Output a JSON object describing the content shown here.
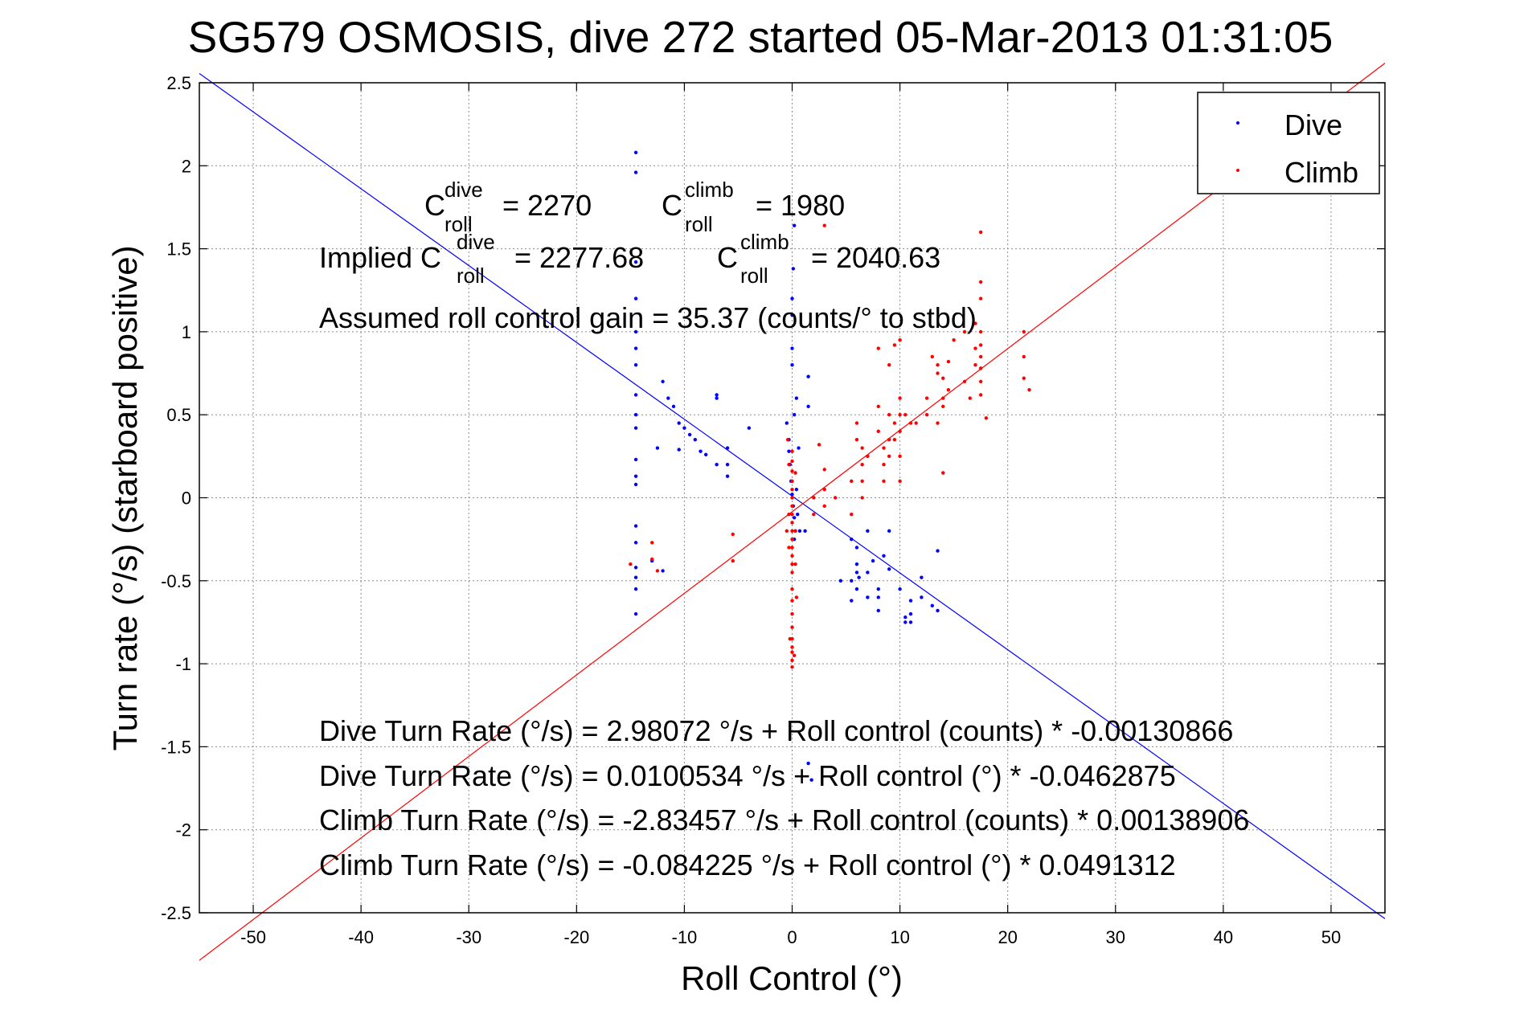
{
  "chart_data": {
    "type": "scatter",
    "title": "SG579 OSMOSIS, dive 272 started 05-Mar-2013 01:31:05",
    "xlabel": "Roll Control (°)",
    "ylabel": "Turn rate (°/s) (starboard positive)",
    "xlim": [
      -55,
      55
    ],
    "ylim": [
      -2.5,
      2.5
    ],
    "xticks": [
      -50,
      -40,
      -30,
      -20,
      -10,
      0,
      10,
      20,
      30,
      40,
      50
    ],
    "yticks": [
      -2.5,
      -2,
      -1.5,
      -1,
      -0.5,
      0,
      0.5,
      1,
      1.5,
      2,
      2.5
    ],
    "ytick_labels": [
      "-2.5",
      "-2",
      "-1.5",
      "-1",
      "-0.5",
      "0",
      "0.5",
      "1",
      "1.5",
      "2",
      "2.5"
    ],
    "grid": true,
    "legend_position": "top-right",
    "series": [
      {
        "name": "Dive",
        "color": "#0000ff",
        "marker": "dot",
        "points": [
          [
            -14.5,
            2.08
          ],
          [
            -14.5,
            1.96
          ],
          [
            -14.5,
            1.42
          ],
          [
            -14.5,
            1.2
          ],
          [
            -14.5,
            1.0
          ],
          [
            -14.5,
            0.9
          ],
          [
            -14.5,
            0.8
          ],
          [
            -14.5,
            0.62
          ],
          [
            -14.5,
            0.5
          ],
          [
            -14.5,
            0.42
          ],
          [
            -14.5,
            0.23
          ],
          [
            -14.5,
            0.13
          ],
          [
            -14.5,
            0.08
          ],
          [
            -14.5,
            -0.17
          ],
          [
            -14.5,
            -0.27
          ],
          [
            -14.5,
            -0.42
          ],
          [
            -14.5,
            -0.48
          ],
          [
            -14.5,
            -0.55
          ],
          [
            -14.5,
            -0.7
          ],
          [
            -12,
            0.7
          ],
          [
            -11.5,
            0.6
          ],
          [
            -11,
            0.55
          ],
          [
            -12.5,
            0.3
          ],
          [
            -10.5,
            0.45
          ],
          [
            -10,
            0.42
          ],
          [
            -9.5,
            0.38
          ],
          [
            -9,
            0.35
          ],
          [
            -8.5,
            0.28
          ],
          [
            -8,
            0.26
          ],
          [
            -7,
            0.2
          ],
          [
            -7,
            0.6
          ],
          [
            -7,
            0.62
          ],
          [
            -6,
            0.3
          ],
          [
            -6,
            0.2
          ],
          [
            -6,
            0.13
          ],
          [
            -4,
            0.42
          ],
          [
            -12,
            -0.44
          ],
          [
            -13,
            -0.38
          ],
          [
            -10.5,
            0.29
          ],
          [
            -0.5,
            0.45
          ],
          [
            -0.3,
            0.35
          ],
          [
            -0.2,
            0.2
          ],
          [
            -0.1,
            0.1
          ],
          [
            0,
            0.02
          ],
          [
            0.1,
            -0.05
          ],
          [
            0.2,
            -0.12
          ],
          [
            0.3,
            -0.2
          ],
          [
            0.5,
            -0.1
          ],
          [
            0.4,
            0.05
          ],
          [
            0.6,
            0.3
          ],
          [
            0.7,
            -0.2
          ],
          [
            0.2,
            0.5
          ],
          [
            0.4,
            0.6
          ],
          [
            0.2,
            1.64
          ],
          [
            0.1,
            1.38
          ],
          [
            0,
            1.1
          ],
          [
            0,
            0.9
          ],
          [
            0,
            0.8
          ],
          [
            0,
            1.2
          ],
          [
            1.5,
            0.73
          ],
          [
            1.5,
            0.55
          ],
          [
            -0.3,
            0.28
          ],
          [
            0.2,
            -0.25
          ],
          [
            1.2,
            -0.2
          ],
          [
            1.5,
            -1.6
          ],
          [
            1.8,
            -1.7
          ],
          [
            6,
            -0.3
          ],
          [
            6,
            -0.4
          ],
          [
            6,
            -0.45
          ],
          [
            5.5,
            -0.5
          ],
          [
            5.5,
            -0.62
          ],
          [
            6,
            -0.55
          ],
          [
            6.2,
            -0.48
          ],
          [
            7,
            -0.45
          ],
          [
            7,
            -0.6
          ],
          [
            7.5,
            -0.38
          ],
          [
            4.5,
            -0.5
          ],
          [
            8,
            -0.55
          ],
          [
            8,
            -0.6
          ],
          [
            8,
            -0.68
          ],
          [
            9,
            -0.43
          ],
          [
            10,
            -0.55
          ],
          [
            10.5,
            -0.72
          ],
          [
            10.5,
            -0.75
          ],
          [
            11,
            -0.62
          ],
          [
            11,
            -0.7
          ],
          [
            11,
            -0.75
          ],
          [
            12,
            -0.48
          ],
          [
            12,
            -0.6
          ],
          [
            13,
            -0.65
          ],
          [
            13.5,
            -0.68
          ],
          [
            13.5,
            -0.32
          ],
          [
            5.5,
            -0.25
          ],
          [
            7,
            -0.2
          ],
          [
            8.5,
            -0.35
          ],
          [
            9,
            -0.2
          ]
        ]
      },
      {
        "name": "Climb",
        "color": "#ff0000",
        "marker": "dot",
        "points": [
          [
            0,
            0.28
          ],
          [
            0,
            0.22
          ],
          [
            0,
            0.16
          ],
          [
            0,
            0.1
          ],
          [
            0,
            0.05
          ],
          [
            0,
            0.0
          ],
          [
            0,
            -0.05
          ],
          [
            0,
            -0.1
          ],
          [
            0,
            -0.15
          ],
          [
            0,
            -0.2
          ],
          [
            0,
            -0.25
          ],
          [
            0,
            -0.3
          ],
          [
            0,
            -0.35
          ],
          [
            0,
            -0.4
          ],
          [
            0,
            -0.45
          ],
          [
            0,
            -0.55
          ],
          [
            0,
            -0.62
          ],
          [
            0,
            -0.7
          ],
          [
            0,
            -0.78
          ],
          [
            0,
            -0.85
          ],
          [
            0,
            -0.9
          ],
          [
            0,
            -0.93
          ],
          [
            0,
            -0.98
          ],
          [
            0,
            -1.02
          ],
          [
            -0.3,
            0.2
          ],
          [
            -0.3,
            -0.1
          ],
          [
            -0.3,
            -0.3
          ],
          [
            -0.5,
            -0.2
          ],
          [
            0.3,
            0.15
          ],
          [
            0.3,
            -0.2
          ],
          [
            0.3,
            -0.4
          ],
          [
            -0.4,
            0.35
          ],
          [
            0.4,
            -0.6
          ],
          [
            -0.2,
            -0.85
          ],
          [
            0.2,
            -0.95
          ],
          [
            -15,
            -0.4
          ],
          [
            -13,
            -0.27
          ],
          [
            -13,
            -0.37
          ],
          [
            -12.5,
            -0.44
          ],
          [
            -5.5,
            -0.38
          ],
          [
            -5.5,
            -0.22
          ],
          [
            2.5,
            0.32
          ],
          [
            3,
            0.17
          ],
          [
            3,
            0.05
          ],
          [
            3,
            -0.05
          ],
          [
            2,
            0.0
          ],
          [
            2,
            -0.1
          ],
          [
            4,
            0.0
          ],
          [
            6,
            0.45
          ],
          [
            6,
            0.35
          ],
          [
            6.5,
            0.3
          ],
          [
            6.5,
            0.2
          ],
          [
            6.5,
            0.1
          ],
          [
            6.5,
            0.0
          ],
          [
            7,
            0.25
          ],
          [
            5.5,
            0.1
          ],
          [
            5.5,
            -0.1
          ],
          [
            8,
            0.55
          ],
          [
            8,
            0.4
          ],
          [
            8.5,
            0.3
          ],
          [
            8.5,
            0.2
          ],
          [
            8.5,
            0.1
          ],
          [
            9,
            0.5
          ],
          [
            9,
            0.35
          ],
          [
            9,
            0.25
          ],
          [
            9.5,
            0.45
          ],
          [
            9.5,
            0.35
          ],
          [
            10,
            0.6
          ],
          [
            10,
            0.5
          ],
          [
            10,
            0.4
          ],
          [
            10,
            0.25
          ],
          [
            10,
            0.1
          ],
          [
            10.5,
            0.5
          ],
          [
            11,
            0.45
          ],
          [
            11.5,
            0.45
          ],
          [
            12.5,
            0.5
          ],
          [
            13.5,
            0.45
          ],
          [
            14,
            0.55
          ],
          [
            14,
            0.6
          ],
          [
            13.5,
            0.75
          ],
          [
            13.5,
            0.8
          ],
          [
            14,
            0.72
          ],
          [
            14.5,
            0.65
          ],
          [
            14.5,
            0.82
          ],
          [
            13,
            0.85
          ],
          [
            12.5,
            0.6
          ],
          [
            8,
            0.9
          ],
          [
            9,
            0.8
          ],
          [
            9.5,
            0.92
          ],
          [
            10,
            0.95
          ],
          [
            16,
            0.7
          ],
          [
            17,
            0.8
          ],
          [
            17,
            0.9
          ],
          [
            17,
            1.05
          ],
          [
            17.5,
            0.62
          ],
          [
            17.5,
            0.7
          ],
          [
            17.5,
            0.78
          ],
          [
            17.5,
            0.85
          ],
          [
            17.5,
            0.92
          ],
          [
            17.5,
            1.0
          ],
          [
            17.5,
            1.2
          ],
          [
            17.5,
            1.3
          ],
          [
            17.5,
            1.6
          ],
          [
            16.5,
            0.6
          ],
          [
            18,
            0.48
          ],
          [
            15,
            0.95
          ],
          [
            16,
            1.0
          ],
          [
            21.5,
            0.72
          ],
          [
            21.5,
            0.85
          ],
          [
            21.5,
            1.0
          ],
          [
            22,
            0.65
          ],
          [
            14,
            0.15
          ],
          [
            3,
            1.64
          ]
        ]
      }
    ],
    "fit_lines": [
      {
        "series": "Dive",
        "color": "#0000ff",
        "intercept": 0.0100534,
        "slope": -0.0462875
      },
      {
        "series": "Climb",
        "color": "#ff0000",
        "intercept": -0.084225,
        "slope": 0.0491312
      }
    ],
    "annotations": {
      "c_dive": {
        "base": "C",
        "sup": "dive",
        "sub": "roll",
        "value": "= 2270"
      },
      "c_climb": {
        "base": "C",
        "sup": "climb",
        "sub": "roll",
        "value": "= 1980"
      },
      "implied_prefix": "Implied C",
      "implied_dive": {
        "sup": "dive",
        "sub": "roll",
        "value": "= 2277.68"
      },
      "implied_climb": {
        "base": "C",
        "sup": "climb",
        "sub": "roll",
        "value": "= 2040.63"
      },
      "gain": "Assumed roll control gain = 35.37 (counts/° to stbd)",
      "eq1": "Dive Turn Rate (°/s) = 2.98072 °/s + Roll control (counts) * -0.00130866",
      "eq2": "Dive Turn Rate (°/s) = 0.0100534 °/s + Roll control (°) * -0.0462875",
      "eq3": "Climb Turn Rate (°/s) = -2.83457 °/s + Roll control (counts) * 0.00138906",
      "eq4": "Climb Turn Rate (°/s) = -0.084225 °/s + Roll control (°) * 0.0491312"
    }
  }
}
